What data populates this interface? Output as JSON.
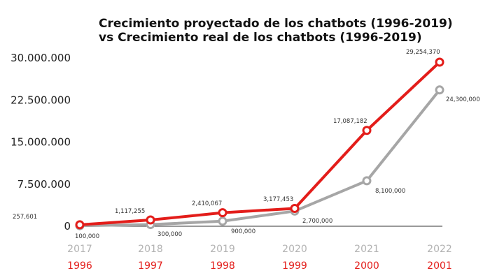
{
  "colors": {
    "projected": "#e31d1a",
    "real": "#a6a6a6"
  },
  "chart_data": {
    "type": "line",
    "title_lines": [
      "Crecimiento proyectado de los chatbots (1996-2019)",
      "vs Crecimiento real de los chatbots (1996-2019)"
    ],
    "categories_top": [
      "2017",
      "2018",
      "2019",
      "2020",
      "2021",
      "2022"
    ],
    "categories_bottom": [
      "1996",
      "1997",
      "1998",
      "1999",
      "2000",
      "2001"
    ],
    "yticks": [
      0,
      7500000,
      15000000,
      22500000,
      30000000
    ],
    "ytick_labels": [
      "0",
      "7.500.000",
      "15.000.000",
      "22.500.000",
      "30.000.000"
    ],
    "ylim": [
      0,
      30000000
    ],
    "grid": false,
    "series": [
      {
        "key": "projected",
        "values": [
          257601,
          1117255,
          2410067,
          3177453,
          17087182,
          29254370
        ],
        "labels": [
          "257,601",
          "1,117,255",
          "2,410,067",
          "3,177,453",
          "17,087,182",
          "29,254,370"
        ]
      },
      {
        "key": "real",
        "values": [
          100000,
          300000,
          900000,
          2700000,
          8100000,
          24300000
        ],
        "labels": [
          "100,000",
          "300,000",
          "900,000",
          "2,700,000",
          "8,100,000",
          "24,300,000"
        ]
      }
    ]
  }
}
